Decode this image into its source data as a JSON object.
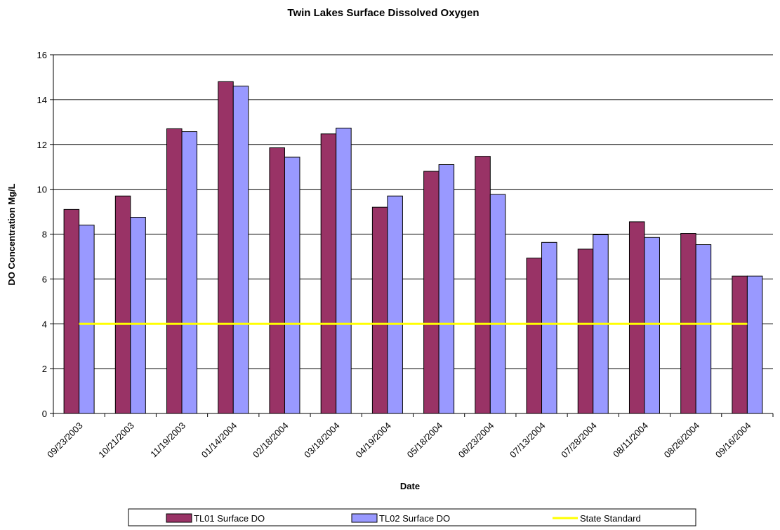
{
  "chart_data": {
    "type": "bar",
    "title": "Twin Lakes Surface Dissolved Oxygen",
    "xlabel": "Date",
    "ylabel": "DO Concentration Mg/L",
    "ylim": [
      0,
      16
    ],
    "yticks": [
      0,
      2,
      4,
      6,
      8,
      10,
      12,
      14,
      16
    ],
    "grid": true,
    "legend_position": "bottom",
    "categories": [
      "09/23/2003",
      "10/21/2003",
      "11/19/2003",
      "01/14/2004",
      "02/18/2004",
      "03/18/2004",
      "04/19/2004",
      "05/18/2004",
      "06/23/2004",
      "07/13/2004",
      "07/28/2004",
      "08/11/2004",
      "08/26/2004",
      "09/16/2004"
    ],
    "series": [
      {
        "name": "TL01 Surface DO",
        "kind": "bar",
        "color": "#993366",
        "values": [
          9.1,
          9.7,
          12.7,
          14.8,
          11.85,
          12.47,
          9.2,
          10.8,
          11.47,
          6.93,
          7.33,
          8.55,
          8.03,
          6.13
        ]
      },
      {
        "name": "TL02 Surface DO",
        "kind": "bar",
        "color": "#9999FF",
        "values": [
          8.4,
          8.75,
          12.57,
          14.6,
          11.43,
          12.73,
          9.7,
          11.1,
          9.77,
          7.63,
          7.97,
          7.85,
          7.53,
          6.13
        ]
      },
      {
        "name": "State Standard",
        "kind": "line",
        "color": "#FFFF00",
        "values": [
          4,
          4,
          4,
          4,
          4,
          4,
          4,
          4,
          4,
          4,
          4,
          4,
          4,
          4
        ]
      }
    ]
  }
}
